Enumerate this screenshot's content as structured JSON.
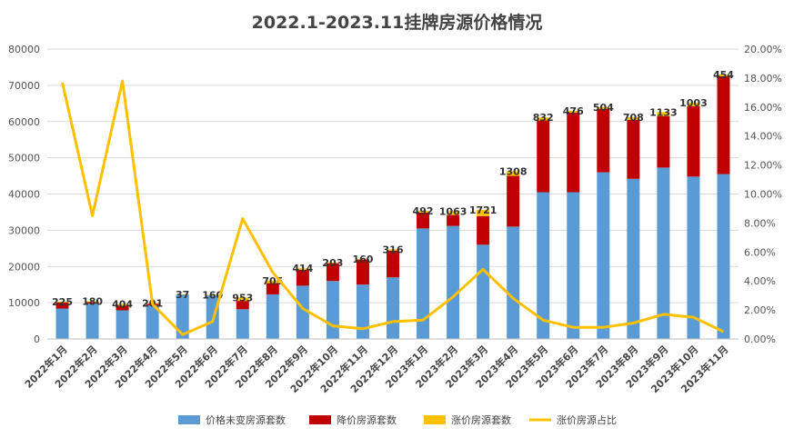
{
  "chart_data": {
    "type": "bar",
    "title": "2022.1-2023.11挂牌房源价格情况",
    "categories": [
      "2022年1月",
      "2022年2月",
      "2022年3月",
      "2022年4月",
      "2022年5月",
      "2022年6月",
      "2022年7月",
      "2022年8月",
      "2022年9月",
      "2022年10月",
      "2022年11月",
      "2022年12月",
      "2023年1月",
      "2023年2月",
      "2023年3月",
      "2023年4月",
      "2023年5月",
      "2023年6月",
      "2023年7月",
      "2023年8月",
      "2023年9月",
      "2023年10月",
      "2023年11月"
    ],
    "series": [
      {
        "name": "价格未变房源套数",
        "type": "stacked-bar",
        "axis": "left",
        "color": "#5B9BD5",
        "values": [
          8400,
          9800,
          7900,
          9300,
          12300,
          12000,
          8200,
          12300,
          14700,
          16000,
          15000,
          17000,
          30500,
          31200,
          26000,
          31000,
          40500,
          40500,
          46000,
          44200,
          47300,
          44800,
          45500
        ]
      },
      {
        "name": "降价房源套数",
        "type": "stacked-bar",
        "axis": "left",
        "color": "#C00000",
        "values": [
          1700,
          400,
          1300,
          400,
          0,
          0,
          2300,
          3100,
          4400,
          4900,
          6900,
          7400,
          4400,
          3000,
          7900,
          14000,
          19800,
          22000,
          17500,
          16300,
          14200,
          19400,
          27000
        ]
      },
      {
        "name": "涨价房源套数",
        "type": "stacked-bar",
        "axis": "left",
        "color": "#FFC000",
        "values": [
          225,
          180,
          404,
          201,
          37,
          160,
          953,
          705,
          414,
          203,
          160,
          316,
          492,
          1063,
          1721,
          1308,
          832,
          476,
          504,
          708,
          1133,
          1003,
          454
        ]
      },
      {
        "name": "涨价房源占比",
        "type": "line",
        "axis": "right",
        "color": "#FFC000",
        "values": [
          17.7,
          8.5,
          17.8,
          2.4,
          0.3,
          1.2,
          8.3,
          4.6,
          2.1,
          0.9,
          0.7,
          1.2,
          1.3,
          2.9,
          4.8,
          2.8,
          1.3,
          0.8,
          0.8,
          1.1,
          1.7,
          1.5,
          0.5
        ]
      }
    ],
    "bar_labels": [
      "225",
      "180",
      "404",
      "201",
      "37",
      "160",
      "953",
      "705",
      "414",
      "203",
      "160",
      "316",
      "492",
      "1063",
      "1721",
      "1308",
      "832",
      "476",
      "504",
      "708",
      "1133",
      "1003",
      "454"
    ],
    "y_left": {
      "min": 0,
      "max": 80000,
      "step": 10000,
      "ticks": [
        "0",
        "10000",
        "20000",
        "30000",
        "40000",
        "50000",
        "60000",
        "70000",
        "80000"
      ]
    },
    "y_right": {
      "min": 0,
      "max": 20,
      "step": 2,
      "ticks": [
        "0.00%",
        "2.00%",
        "4.00%",
        "6.00%",
        "8.00%",
        "10.00%",
        "12.00%",
        "14.00%",
        "16.00%",
        "18.00%",
        "20.00%"
      ]
    },
    "grid": true,
    "legend_position": "bottom"
  }
}
